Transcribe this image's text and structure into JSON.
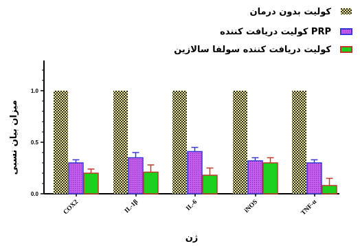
{
  "chart_data": {
    "type": "bar",
    "categories": [
      "COX2",
      "IL-1β",
      "IL-6",
      "iNOS",
      "TNF-α"
    ],
    "series": [
      {
        "name": "کولیت بدون درمان",
        "values": [
          1.0,
          1.0,
          1.0,
          1.0,
          1.0
        ],
        "errors": [
          0,
          0,
          0,
          0,
          0
        ],
        "fill": "checker",
        "colors": [
          "#2b2b1a",
          "#e8e4a0"
        ]
      },
      {
        "name": "کولیت دریافت کننده  PRP",
        "values": [
          0.3,
          0.35,
          0.41,
          0.32,
          0.3
        ],
        "errors": [
          0.03,
          0.05,
          0.04,
          0.03,
          0.03
        ],
        "fill": "dots",
        "colors": [
          "#b44de0",
          "#3b38d6"
        ]
      },
      {
        "name": "کولیت   دریافت کننده سولفا سالازین",
        "values": [
          0.2,
          0.21,
          0.18,
          0.3,
          0.08
        ],
        "errors": [
          0.04,
          0.07,
          0.07,
          0.05,
          0.07
        ],
        "fill": "solid",
        "colors": [
          "#1fd11f",
          "#c0392b"
        ]
      }
    ],
    "ylim": [
      0,
      1.0
    ],
    "yticks": [
      "0.0",
      "0.5",
      "1.0"
    ],
    "xlabel": "ژن",
    "ylabel": "میزان بیان نسبی",
    "legend_position": "top-right"
  }
}
